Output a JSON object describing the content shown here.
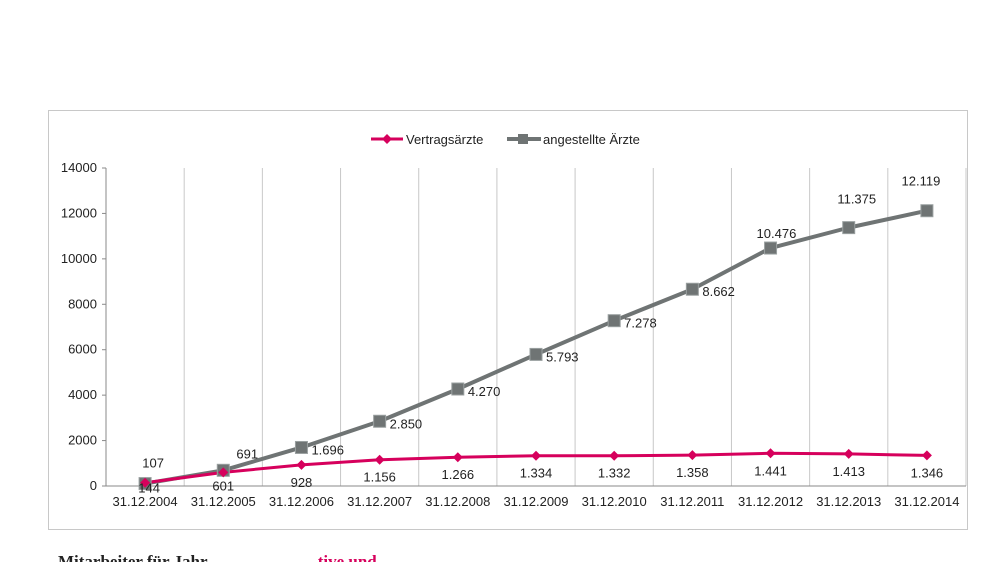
{
  "colors": {
    "vertragsaerzte": "#d6005c",
    "angestellte": "#6f7474",
    "grid": "#c8c8c8",
    "axis": "#8a8a8a"
  },
  "chart_data": {
    "type": "line",
    "title": "",
    "xlabel": "",
    "ylabel": "",
    "categories": [
      "31.12.2004",
      "31.12.2005",
      "31.12.2006",
      "31.12.2007",
      "31.12.2008",
      "31.12.2009",
      "31.12.2010",
      "31.12.2011",
      "31.12.2012",
      "31.12.2013",
      "31.12.2014"
    ],
    "ylim": [
      0,
      14000
    ],
    "yticks": [
      0,
      2000,
      4000,
      6000,
      8000,
      10000,
      12000,
      14000
    ],
    "ytick_labels": [
      "0",
      "2000",
      "4000",
      "6000",
      "8000",
      "10000",
      "12000",
      "14000"
    ],
    "grid": "vertical",
    "legend_position": "top-center",
    "series": [
      {
        "name": "Vertragsärzte",
        "marker": "diamond",
        "values": [
          144,
          601,
          928,
          1156,
          1266,
          1334,
          1332,
          1358,
          1441,
          1413,
          1346
        ],
        "labels": [
          "144",
          "601",
          "928",
          "1.156",
          "1.266",
          "1.334",
          "1.332",
          "1.358",
          "1.441",
          "1.413",
          "1.346"
        ]
      },
      {
        "name": "angestellte Ärzte",
        "marker": "square",
        "values": [
          107,
          691,
          1696,
          2850,
          4270,
          5793,
          7278,
          8662,
          10476,
          11375,
          12119
        ],
        "labels": [
          "107",
          "691",
          "1.696",
          "2.850",
          "4.270",
          "5.793",
          "7.278",
          "8.662",
          "10.476",
          "11.375",
          "12.119"
        ]
      }
    ]
  },
  "caption": {
    "left_text": "Mitarbeiter für Jahr",
    "right_text": "tive und"
  }
}
